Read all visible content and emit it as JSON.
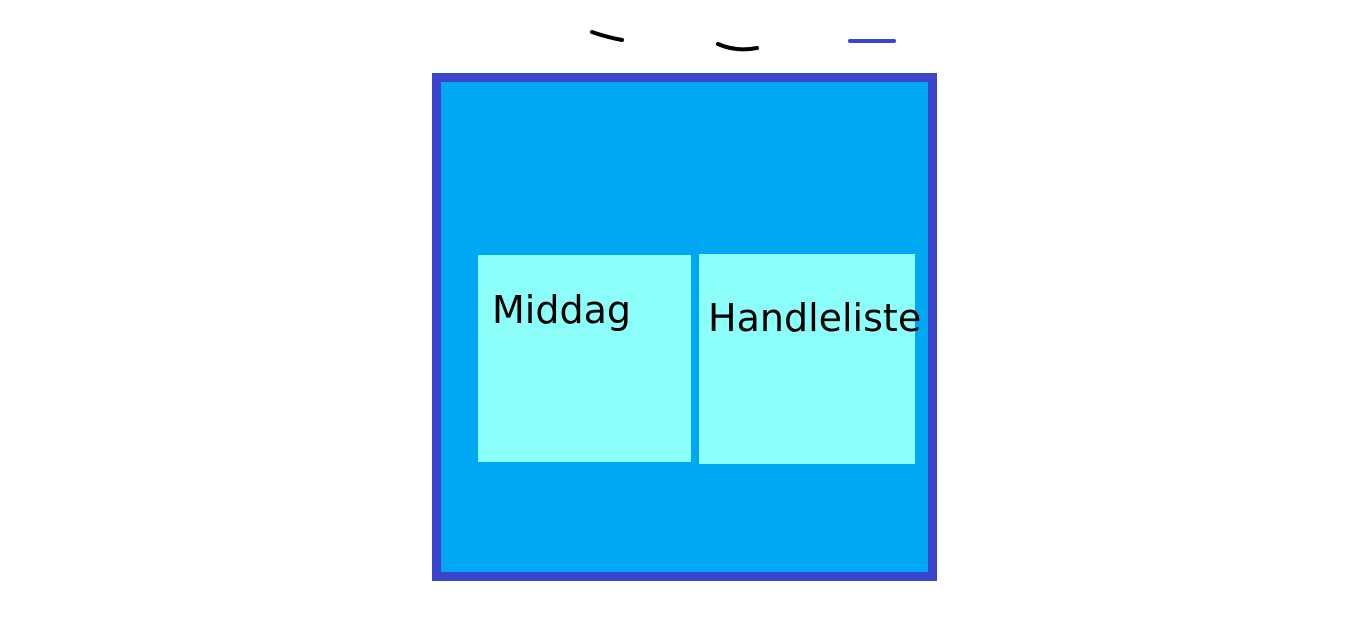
{
  "colors": {
    "frame_border": "#3b44cc",
    "frame_fill": "#00a8f3",
    "note_fill": "#8cfffb",
    "ink_black": "#000000",
    "ink_blue": "#3b44cc"
  },
  "notes": [
    {
      "label": "Middag"
    },
    {
      "label": "Handleliste"
    }
  ]
}
